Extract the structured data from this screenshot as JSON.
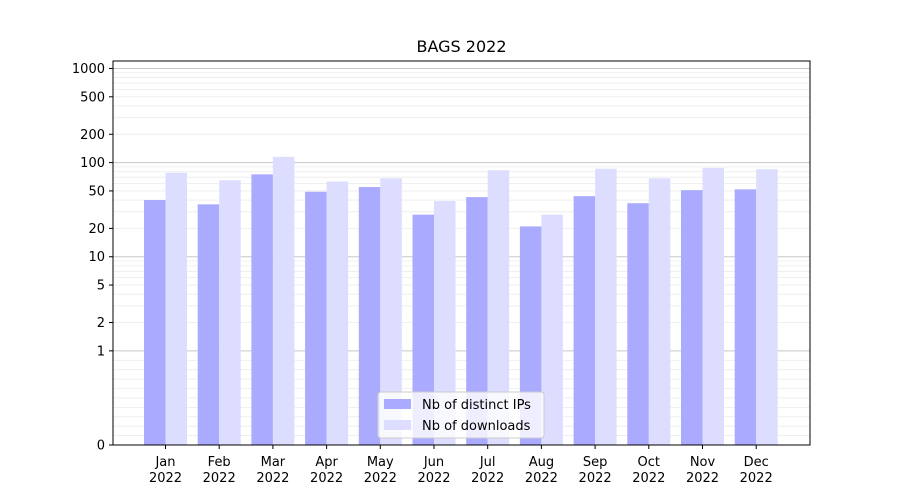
{
  "chart_data": {
    "type": "bar",
    "title": "BAGS 2022",
    "xlabel": "",
    "ylabel": "",
    "yscale": "symlog",
    "ylim": [
      0,
      1200
    ],
    "y_ticks": [
      0,
      1,
      2,
      5,
      10,
      20,
      50,
      100,
      200,
      500,
      1000
    ],
    "grid": "horizontal",
    "legend_position": "bottom-center",
    "categories": [
      {
        "month": "Jan",
        "year": "2022"
      },
      {
        "month": "Feb",
        "year": "2022"
      },
      {
        "month": "Mar",
        "year": "2022"
      },
      {
        "month": "Apr",
        "year": "2022"
      },
      {
        "month": "May",
        "year": "2022"
      },
      {
        "month": "Jun",
        "year": "2022"
      },
      {
        "month": "Jul",
        "year": "2022"
      },
      {
        "month": "Aug",
        "year": "2022"
      },
      {
        "month": "Sep",
        "year": "2022"
      },
      {
        "month": "Oct",
        "year": "2022"
      },
      {
        "month": "Nov",
        "year": "2022"
      },
      {
        "month": "Dec",
        "year": "2022"
      }
    ],
    "series": [
      {
        "name": "Nb of distinct IPs",
        "color": "#aaaaff",
        "values": [
          40,
          36,
          75,
          49,
          55,
          28,
          43,
          21,
          44,
          37,
          51,
          52
        ]
      },
      {
        "name": "Nb of downloads",
        "color": "#ddddff",
        "values": [
          78,
          65,
          115,
          63,
          68,
          39,
          83,
          28,
          86,
          68,
          88,
          85
        ]
      }
    ]
  }
}
